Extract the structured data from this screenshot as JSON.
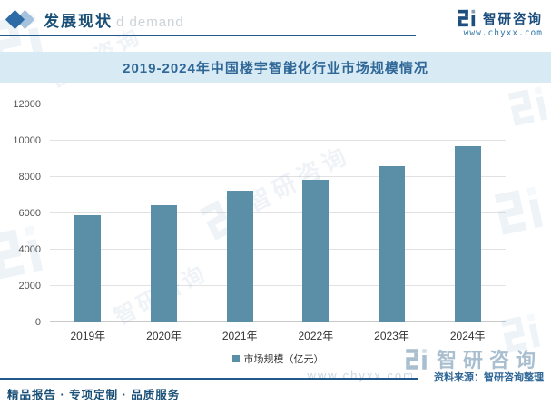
{
  "header": {
    "section_title": "发展现状",
    "brand_name": "智研咨询",
    "brand_url": "www.chyxx.com"
  },
  "chart_title": "2019-2024年中国楼宇智能化行业市场规模情况",
  "chart_data": {
    "type": "bar",
    "title": "2019-2024年中国楼宇智能化行业市场规模情况",
    "categories": [
      "2019年",
      "2020年",
      "2021年",
      "2022年",
      "2023年",
      "2024年"
    ],
    "series": [
      {
        "name": "市场规模（亿元）",
        "values": [
          5900,
          6450,
          7250,
          7850,
          8600,
          9700
        ]
      }
    ],
    "ylim": [
      0,
      12000
    ],
    "ytick_step": 2000,
    "grid": true,
    "legend_position": "bottom",
    "bar_color": "#5b8fa8"
  },
  "legend": {
    "label": "市场规模（亿元）"
  },
  "footer": {
    "tagline": "精品报告 · 专项定制 · 品质服务",
    "source": "资料来源：智研咨询整理",
    "brand_name": "智研咨询"
  },
  "watermarks": {
    "brand_text": "智研咨询",
    "demand_text": "d demand",
    "url_text": "www.chyxx.com"
  },
  "colors": {
    "accent_dark": "#1a5078",
    "accent_mid": "#2f6797",
    "band_bg": "#d8eaf4",
    "bar": "#5b8fa8",
    "watermark": "#7fa6c4"
  }
}
